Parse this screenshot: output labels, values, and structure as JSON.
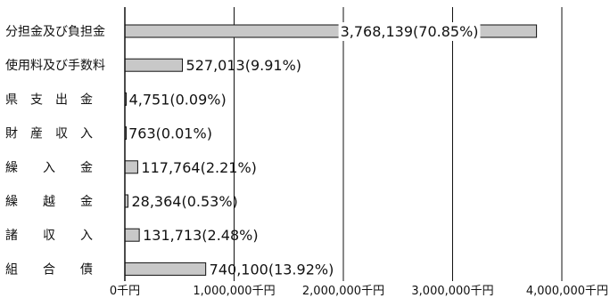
{
  "chart_data": {
    "type": "bar",
    "orientation": "horizontal",
    "categories": [
      "分担金及び負担金",
      "使用料及び手数料",
      "県　支　出　金",
      "財　産　収　入",
      "繰　　入　　金",
      "繰　　越　　金",
      "諸　　収　　入",
      "組　　合　　債"
    ],
    "values": [
      3768139,
      527013,
      4751,
      763,
      117764,
      28364,
      131713,
      740100
    ],
    "data_labels": [
      "3,768,139(70.85%)",
      "527,013(9.91%)",
      "4,751(0.09%)",
      "763(0.01%)",
      "117,764(2.21%)",
      "28,364(0.53%)",
      "131,713(2.48%)",
      "740,100(13.92%)"
    ],
    "x_ticks": [
      0,
      1000000,
      2000000,
      3000000,
      4000000
    ],
    "x_tick_labels": [
      "0千円",
      "1,000,000千円",
      "2,000,000千円",
      "3,000,000千円",
      "4,000,000千円"
    ],
    "xlim": [
      0,
      4000000
    ],
    "grid": true,
    "bar_color": "#c8c8c8",
    "title": "",
    "xlabel": "",
    "ylabel": ""
  }
}
